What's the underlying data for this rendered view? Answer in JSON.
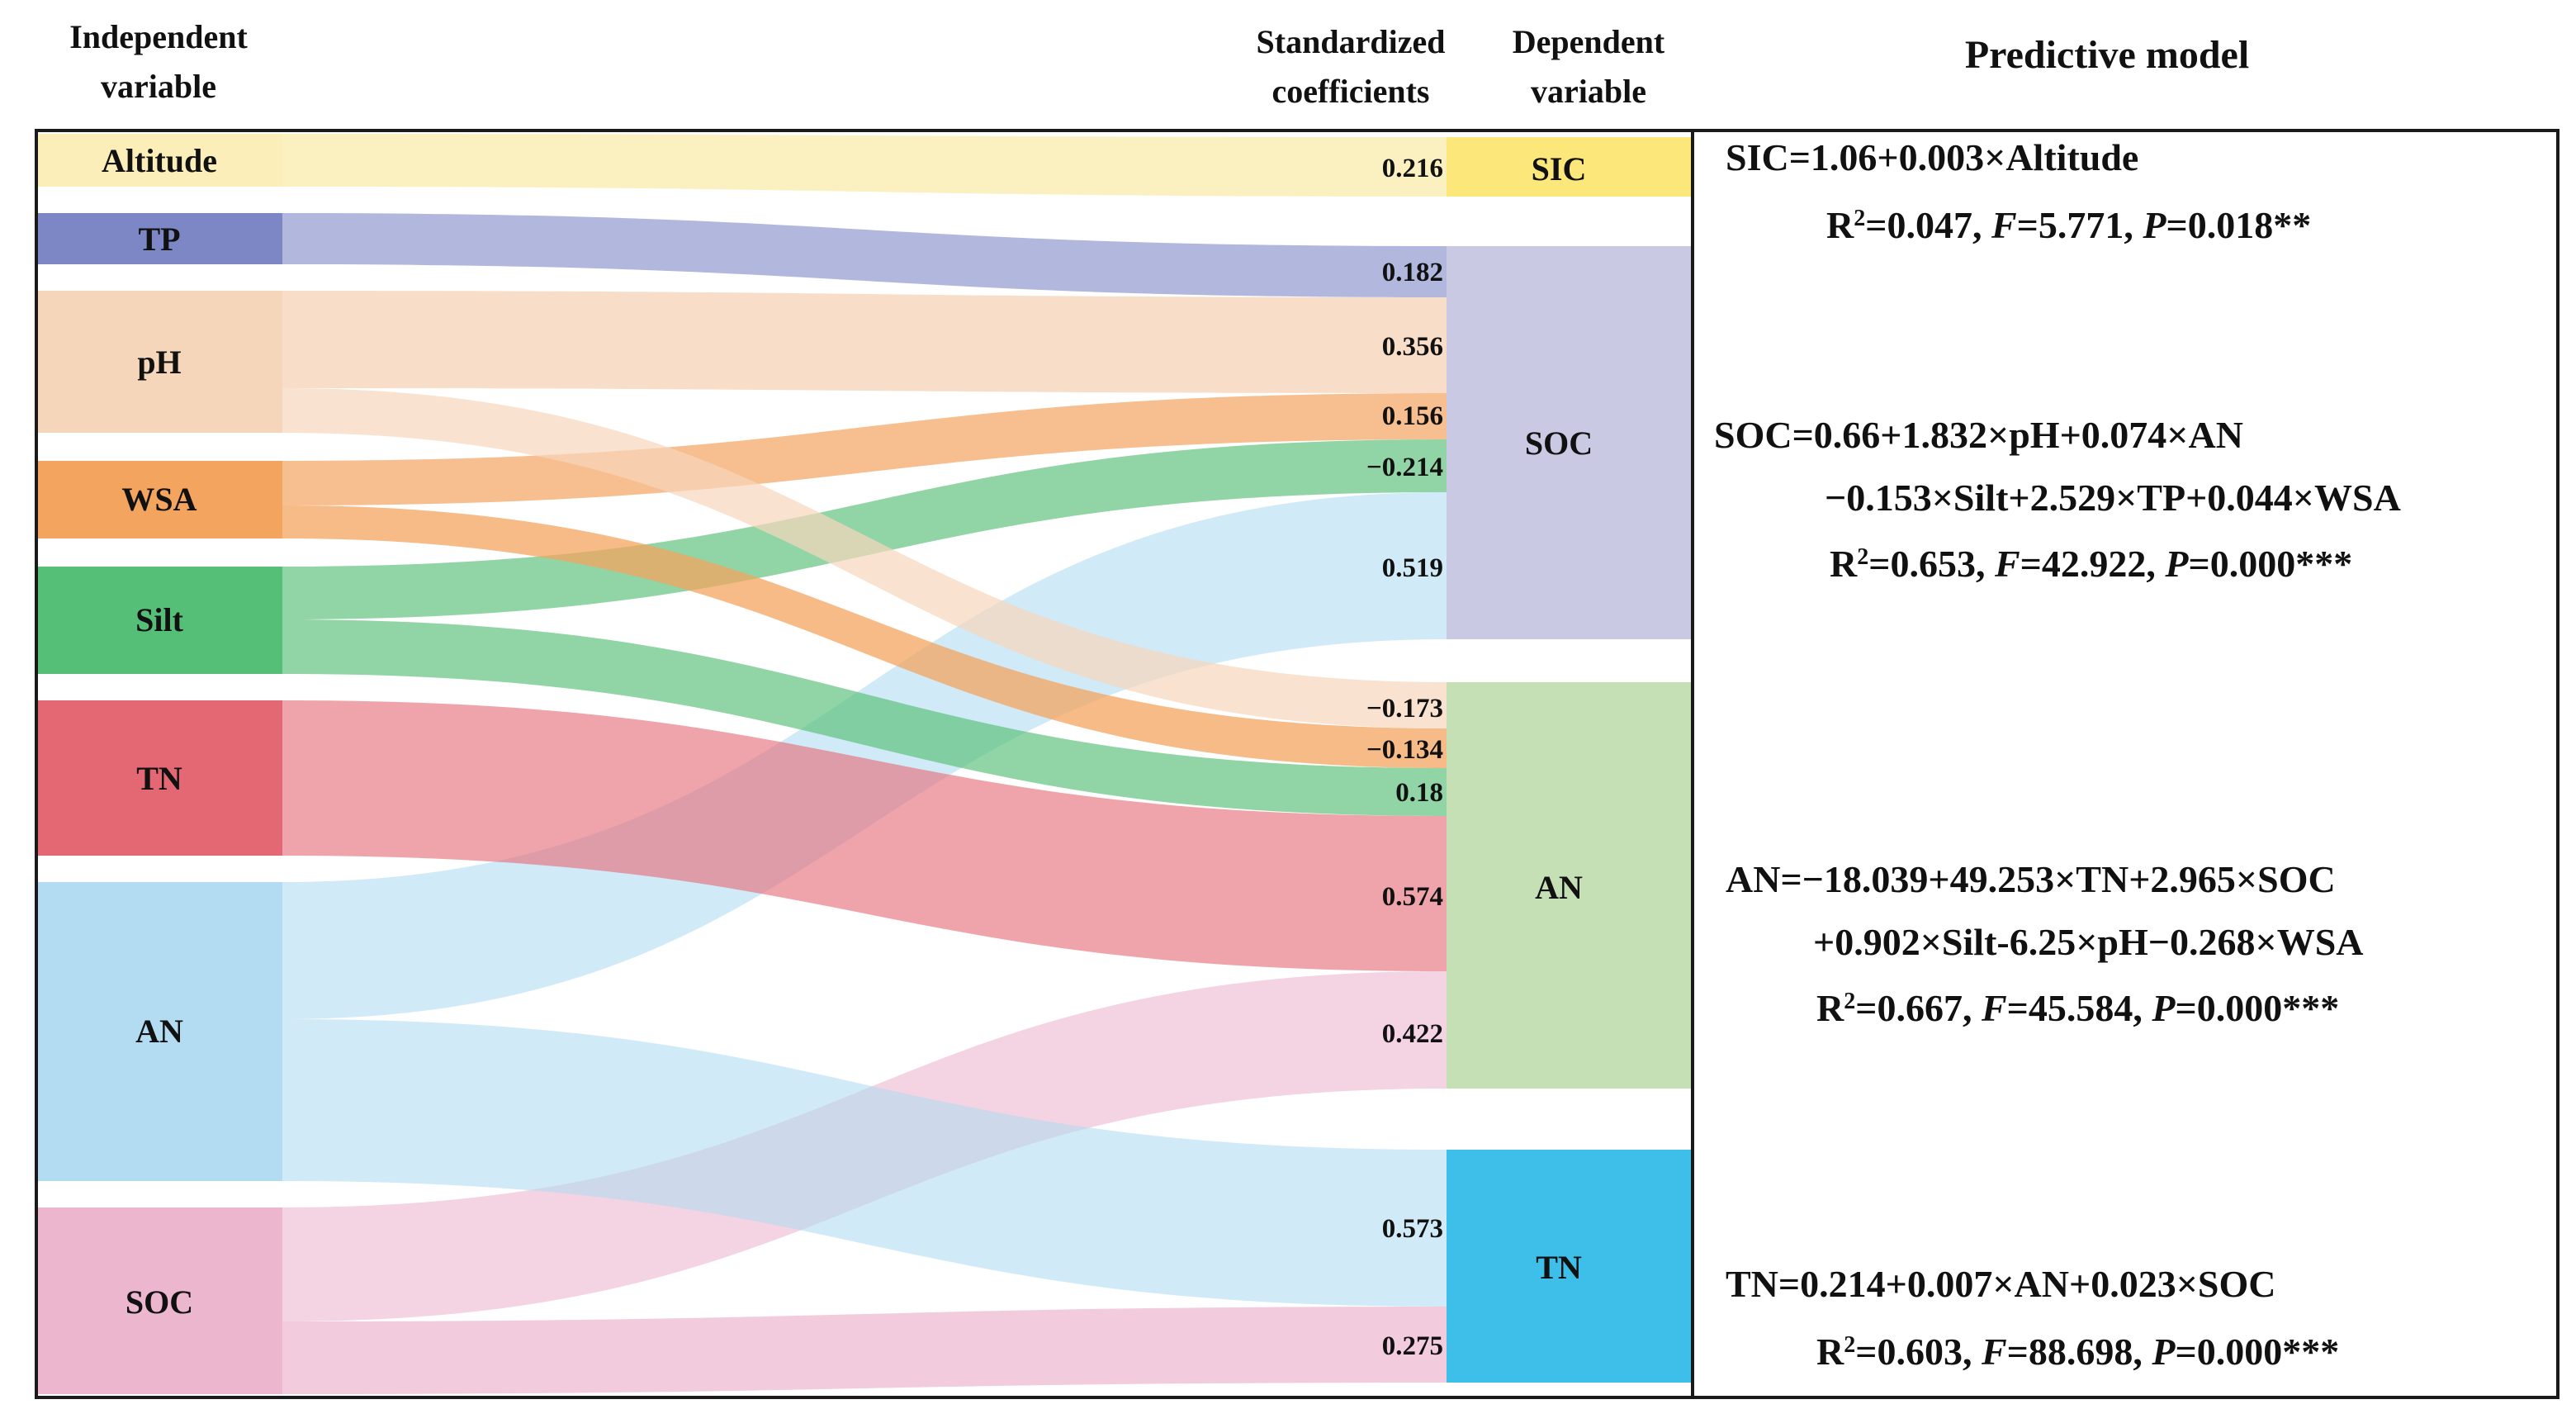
{
  "headers": {
    "independent_line1": "Independent",
    "independent_line2": "variable",
    "coef_line1": "Standardized",
    "coef_line2": "coefficients",
    "dependent_line1": "Dependent",
    "dependent_line2": "variable",
    "model": "Predictive model"
  },
  "colors": {
    "Altitude": "#fbeeb8",
    "TP": "#7d87c6",
    "pH": "#f6d6ba",
    "WSA": "#f3a45f",
    "Silt": "#56bf77",
    "TN_src": "#e46873",
    "AN_src": "#b3dcf2",
    "SOC_src": "#edb6cf",
    "SIC": "#fbe77a",
    "SOC_dst": "#c9c9e3",
    "AN_dst": "#c5e0b4",
    "TN_dst": "#3ebfe9"
  },
  "independent": [
    {
      "id": "Altitude",
      "label": "Altitude"
    },
    {
      "id": "TP",
      "label": "TP"
    },
    {
      "id": "pH",
      "label": "pH"
    },
    {
      "id": "WSA",
      "label": "WSA"
    },
    {
      "id": "Silt",
      "label": "Silt"
    },
    {
      "id": "TN",
      "label": "TN"
    },
    {
      "id": "AN",
      "label": "AN"
    },
    {
      "id": "SOC",
      "label": "SOC"
    }
  ],
  "dependent": [
    {
      "id": "SIC",
      "label": "SIC"
    },
    {
      "id": "SOC",
      "label": "SOC"
    },
    {
      "id": "AN",
      "label": "AN"
    },
    {
      "id": "TN",
      "label": "TN"
    }
  ],
  "links": [
    {
      "from": "Altitude",
      "to": "SIC",
      "coef": "0.216"
    },
    {
      "from": "TP",
      "to": "SOC",
      "coef": "0.182"
    },
    {
      "from": "pH",
      "to": "SOC",
      "coef": "0.356"
    },
    {
      "from": "WSA",
      "to": "SOC",
      "coef": "0.156"
    },
    {
      "from": "Silt",
      "to": "SOC",
      "coef": "−0.214"
    },
    {
      "from": "AN",
      "to": "SOC",
      "coef": "0.519"
    },
    {
      "from": "pH",
      "to": "AN",
      "coef": "−0.173"
    },
    {
      "from": "WSA",
      "to": "AN",
      "coef": "−0.134"
    },
    {
      "from": "Silt",
      "to": "AN",
      "coef": "0.18"
    },
    {
      "from": "TN",
      "to": "AN",
      "coef": "0.574"
    },
    {
      "from": "SOC",
      "to": "AN",
      "coef": "0.422"
    },
    {
      "from": "AN",
      "to": "TN",
      "coef": "0.573"
    },
    {
      "from": "SOC",
      "to": "TN",
      "coef": "0.275"
    }
  ],
  "models": [
    {
      "eq": [
        "SIC=1.06+0.003×Altitude"
      ],
      "stats": {
        "r2": "0.047",
        "f": "5.771",
        "p": "0.018**"
      }
    },
    {
      "eq": [
        "SOC=0.66+1.832×pH+0.074×AN",
        "−0.153×Silt+2.529×TP+0.044×WSA"
      ],
      "stats": {
        "r2": "0.653",
        "f": "42.922",
        "p": "0.000***"
      }
    },
    {
      "eq": [
        "AN=−18.039+49.253×TN+2.965×SOC",
        "+0.902×Silt-6.25×pH−0.268×WSA"
      ],
      "stats": {
        "r2": "0.667",
        "f": "45.584",
        "p": "0.000***"
      }
    },
    {
      "eq": [
        "TN=0.214+0.007×AN+0.023×SOC"
      ],
      "stats": {
        "r2": "0.603",
        "f": "88.698",
        "p": "0.000***"
      }
    }
  ]
}
